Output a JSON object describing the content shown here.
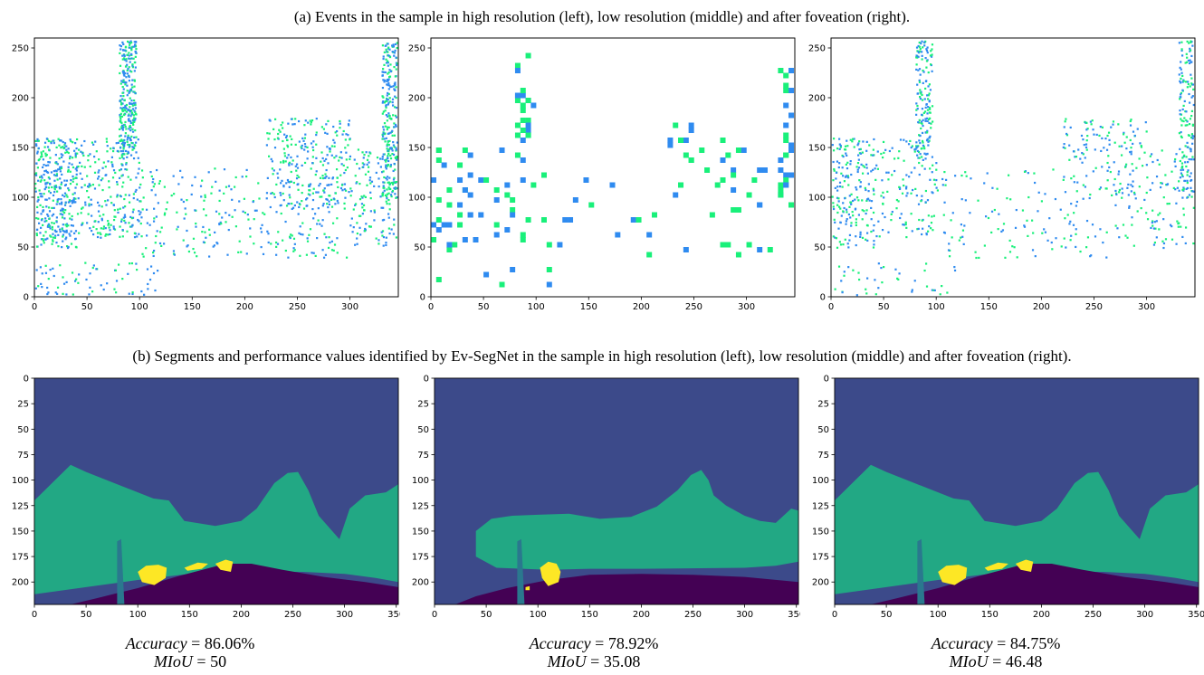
{
  "captions": {
    "a": "(a) Events in the sample in high resolution (left), low resolution (middle) and after foveation (right).",
    "b": "(b) Segments and performance values identified by Ev-SegNet in the sample in high resolution (left), low resolution (middle) and after foveation (right)."
  },
  "colors": {
    "event_pos": "#2f8bf0",
    "event_neg": "#19f07a",
    "seg_bg": "#3c4a8a",
    "seg_veg": "#22a884",
    "seg_road": "#440154",
    "seg_car": "#fde725",
    "seg_pole": "#2a788e"
  },
  "chart_data": [
    {
      "id": "events-high",
      "type": "scatter",
      "row": "a",
      "xticks": [
        0,
        50,
        100,
        150,
        200,
        250,
        300
      ],
      "yticks": [
        0,
        50,
        100,
        150,
        200,
        250
      ],
      "xlim": [
        0,
        346
      ],
      "ylim": [
        0,
        260
      ],
      "y_inverted": false,
      "density": "high"
    },
    {
      "id": "events-low",
      "type": "scatter",
      "row": "a",
      "xticks": [
        0,
        50,
        100,
        150,
        200,
        250,
        300
      ],
      "yticks": [
        0,
        50,
        100,
        150,
        200,
        250
      ],
      "xlim": [
        0,
        346
      ],
      "ylim": [
        0,
        260
      ],
      "y_inverted": false,
      "density": "low"
    },
    {
      "id": "events-foveated",
      "type": "scatter",
      "row": "a",
      "xticks": [
        0,
        50,
        100,
        150,
        200,
        250,
        300
      ],
      "yticks": [
        0,
        50,
        100,
        150,
        200,
        250
      ],
      "xlim": [
        0,
        346
      ],
      "ylim": [
        0,
        260
      ],
      "y_inverted": false,
      "density": "foveated"
    },
    {
      "id": "seg-high",
      "type": "heatmap",
      "row": "b",
      "xticks": [
        0,
        50,
        100,
        150,
        200,
        250,
        300,
        350
      ],
      "yticks": [
        0,
        25,
        50,
        75,
        100,
        125,
        150,
        175,
        200
      ],
      "xlim": [
        0,
        352
      ],
      "ylim": [
        0,
        222
      ],
      "y_inverted": true,
      "accuracy_label": "Accuracy",
      "accuracy": "86.06%",
      "miou_label": "MIoU",
      "miou": "50"
    },
    {
      "id": "seg-low",
      "type": "heatmap",
      "row": "b",
      "xticks": [
        0,
        50,
        100,
        150,
        200,
        250,
        300,
        350
      ],
      "yticks": [
        0,
        25,
        50,
        75,
        100,
        125,
        150,
        175,
        200
      ],
      "xlim": [
        0,
        352
      ],
      "ylim": [
        0,
        222
      ],
      "y_inverted": true,
      "accuracy_label": "Accuracy",
      "accuracy": "78.92%",
      "miou_label": "MIoU",
      "miou": "35.08"
    },
    {
      "id": "seg-foveated",
      "type": "heatmap",
      "row": "b",
      "xticks": [
        0,
        50,
        100,
        150,
        200,
        250,
        300,
        350
      ],
      "yticks": [
        0,
        25,
        50,
        75,
        100,
        125,
        150,
        175,
        200
      ],
      "xlim": [
        0,
        352
      ],
      "ylim": [
        0,
        222
      ],
      "y_inverted": true,
      "accuracy_label": "Accuracy",
      "accuracy": "84.75%",
      "miou_label": "MIoU",
      "miou": "46.48"
    }
  ]
}
